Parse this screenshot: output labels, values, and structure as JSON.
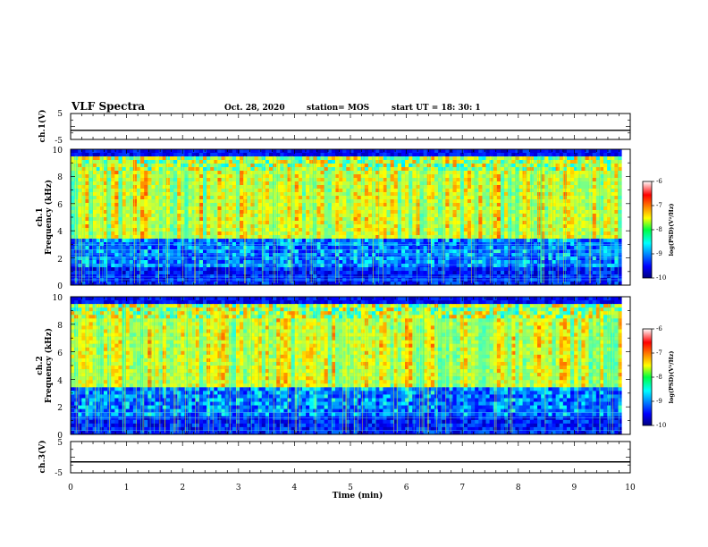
{
  "header": {
    "title": "VLF Spectra",
    "date": "Oct. 28, 2020",
    "station": "station= MOS",
    "start": "start UT = 18: 30: 1"
  },
  "chart_data": [
    {
      "type": "line",
      "name": "ch1-voltage",
      "ylabel": "ch.1(V)",
      "ylim": [
        -5,
        5
      ],
      "yticks": [
        "5",
        "-5"
      ],
      "x": [
        0,
        10
      ],
      "y": [
        -1.5,
        -1.5
      ],
      "color": "#000000"
    },
    {
      "type": "heatmap",
      "name": "ch1-spectrogram",
      "ylabel_top": "ch.1",
      "ylabel": "Frequency (kHz)",
      "ylim": [
        0,
        10
      ],
      "yticks": [
        "0",
        "2",
        "4",
        "6",
        "8",
        "10"
      ],
      "xlim": [
        0,
        10
      ],
      "data_end_min": 9.85,
      "colorbar": {
        "label": "log(PSD)(V²/Hz)",
        "range": [
          -10,
          -6
        ],
        "ticks": [
          "-6",
          "-7",
          "-8",
          "-9",
          "-10"
        ]
      }
    },
    {
      "type": "heatmap",
      "name": "ch2-spectrogram",
      "ylabel_top": "ch.2",
      "ylabel": "Frequency (kHz)",
      "ylim": [
        0,
        10
      ],
      "yticks": [
        "0",
        "2",
        "4",
        "6",
        "8",
        "10"
      ],
      "xlim": [
        0,
        10
      ],
      "data_end_min": 9.85,
      "colorbar": {
        "label": "log(PSD)(V²/Hz)",
        "range": [
          -10,
          -6
        ],
        "ticks": [
          "-6",
          "-7",
          "-8",
          "-9",
          "-10"
        ]
      }
    },
    {
      "type": "line",
      "name": "ch3-voltage",
      "ylabel": "ch.3(V)",
      "ylim": [
        -5,
        5
      ],
      "yticks": [
        "5",
        "-5"
      ],
      "x": [
        0,
        10
      ],
      "y": [
        -1.5,
        -1.5
      ],
      "color": "#000000"
    }
  ],
  "xaxis": {
    "label": "Time (min)",
    "range": [
      0,
      10
    ],
    "ticks": [
      "0",
      "1",
      "2",
      "3",
      "4",
      "5",
      "6",
      "7",
      "8",
      "9",
      "10"
    ]
  }
}
